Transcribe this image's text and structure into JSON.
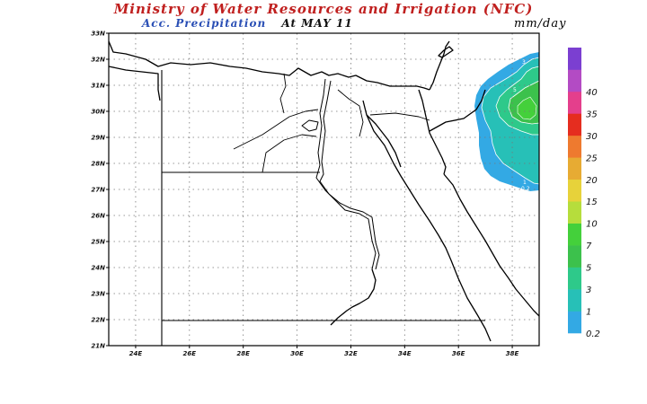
{
  "header": {
    "title": "Ministry of Water Resources and Irrigation (NFC)",
    "subtitle": "Acc. Precipitation",
    "date": "At MAY 11",
    "units": "mm/day"
  },
  "colors": {
    "title": "#c0201f",
    "subtitle": "#2a4fb5",
    "frame": "#000000"
  },
  "map": {
    "lon_range": [
      23,
      39
    ],
    "lat_range": [
      21,
      33
    ],
    "lon_ticks": [
      "24E",
      "26E",
      "28E",
      "30E",
      "32E",
      "34E",
      "36E",
      "38E"
    ],
    "lat_ticks": [
      "21N",
      "22N",
      "23N",
      "24N",
      "25N",
      "26N",
      "27N",
      "28N",
      "29N",
      "30N",
      "31N",
      "32N",
      "33N"
    ],
    "contour_labels": [
      "3",
      "5",
      "0.2",
      "1"
    ]
  },
  "legend": {
    "levels": [
      "0.2",
      "1",
      "3",
      "5",
      "7",
      "10",
      "15",
      "20",
      "25",
      "30",
      "35",
      "40"
    ],
    "colors": [
      "#33a9e4",
      "#27c0b7",
      "#2ec98a",
      "#3cc14c",
      "#44d03b",
      "#b6dd3c",
      "#e7d23a",
      "#e7ab33",
      "#ee7a2f",
      "#e52d1f",
      "#e43f8c",
      "#b34bc4",
      "#7b3fd1"
    ]
  }
}
